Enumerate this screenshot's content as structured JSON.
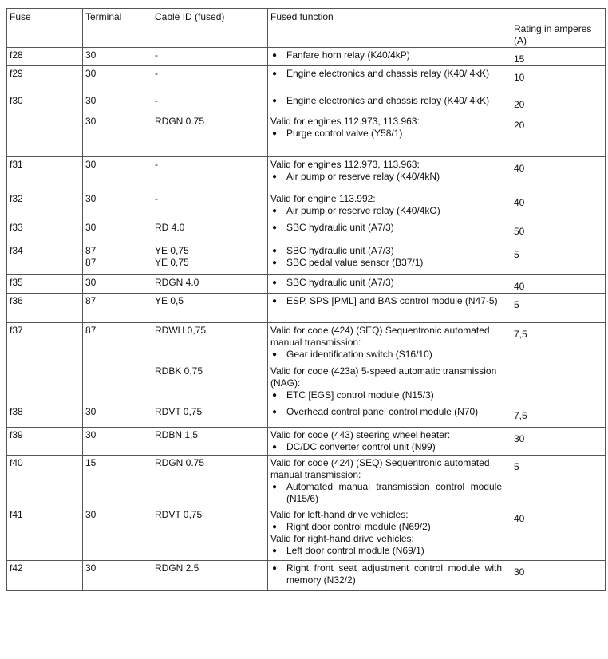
{
  "headers": [
    "Fuse",
    "Terminal",
    "Cable ID (fused)",
    "Fused function",
    "Rating in amperes (A)"
  ],
  "groups": [
    {
      "entries": [
        {
          "fuse": "f28",
          "terminal": "30",
          "cable": "-",
          "function": [
            {
              "type": "bullet",
              "text": "Fanfare horn relay  (K40/4kP)"
            }
          ],
          "rating": "15"
        }
      ]
    },
    {
      "entries": [
        {
          "fuse": "f29",
          "terminal": "30",
          "cable": "-",
          "function": [
            {
              "type": "bullet",
              "text": "Engine electronics and chassis relay (K40/ 4kK)"
            }
          ],
          "rating": "10"
        }
      ]
    },
    {
      "entries": [
        {
          "fuse": "f30",
          "terminal": "30",
          "cable": "-",
          "function": [
            {
              "type": "bullet",
              "text": "Engine electronics and chassis relay (K40/ 4kK)"
            }
          ],
          "rating": "20"
        },
        {
          "fuse": "",
          "terminal": "30",
          "cable": "RDGN 0.75",
          "function": [
            {
              "type": "text",
              "text": "Valid for engines 112.973, 113.963:"
            },
            {
              "type": "bullet",
              "text": "Purge control valve  (Y58/1)"
            }
          ],
          "rating": "20"
        }
      ]
    },
    {
      "entries": [
        {
          "fuse": "f31",
          "terminal": "30",
          "cable": "-",
          "function": [
            {
              "type": "text",
              "text": "Valid for engines 112.973, 113.963:"
            },
            {
              "type": "bullet",
              "text": "Air pump or reserve relay  (K40/4kN)"
            }
          ],
          "rating": "40"
        }
      ]
    },
    {
      "entries": [
        {
          "fuse": "f32",
          "terminal": "30",
          "cable": "-",
          "function": [
            {
              "type": "text",
              "text": "Valid for engine 113.992:"
            },
            {
              "type": "bullet",
              "text": "Air pump or reserve relay  (K40/4kO)"
            }
          ],
          "rating": "40"
        },
        {
          "fuse": "f33",
          "terminal": "30",
          "cable": "RD 4.0",
          "function": [
            {
              "type": "bullet",
              "text": "SBC hydraulic unit  (A7/3)"
            }
          ],
          "rating": "50"
        }
      ]
    },
    {
      "entries": [
        {
          "fuse": "f34",
          "terminal": "87\n87",
          "cable": "YE 0,75\nYE 0,75",
          "function": [
            {
              "type": "bullet",
              "text": "SBC hydraulic unit  (A7/3)"
            },
            {
              "type": "bullet",
              "text": "SBC pedal value sensor (B37/1)"
            }
          ],
          "rating": "5"
        }
      ]
    },
    {
      "entries": [
        {
          "fuse": "f35",
          "terminal": "30",
          "cable": "RDGN 4.0",
          "function": [
            {
              "type": "bullet",
              "text": "SBC hydraulic unit  (A7/3)"
            }
          ],
          "rating": "40"
        }
      ]
    },
    {
      "entries": [
        {
          "fuse": "f36",
          "terminal": "87",
          "cable": "YE 0,5",
          "function": [
            {
              "type": "bullet",
              "text": "ESP, SPS [PML] and BAS control module (N47-5)"
            }
          ],
          "rating": "5"
        }
      ]
    },
    {
      "entries": [
        {
          "fuse": "f37",
          "terminal": "87",
          "cable": "RDWH 0,75",
          "function": [
            {
              "type": "text",
              "text": "Valid for code (424) (SEQ) Sequentronic automated manual transmission:"
            },
            {
              "type": "bullet",
              "text": "Gear identification  switch  (S16/10)"
            }
          ],
          "rating": "7,5"
        },
        {
          "fuse": "",
          "terminal": "",
          "cable": "RDBK 0,75",
          "function": [
            {
              "type": "text",
              "text": "Valid for code (423a) 5-speed automatic transmission (NAG):"
            },
            {
              "type": "bullet",
              "text": "ETC [EGS] control  module  (N15/3)"
            }
          ],
          "rating": ""
        },
        {
          "fuse": "f38",
          "terminal": "30",
          "cable": "RDVT 0,75",
          "function": [
            {
              "type": "bullet",
              "text": "Overhead control panel control module (N70)"
            }
          ],
          "rating": "7,5"
        }
      ]
    },
    {
      "entries": [
        {
          "fuse": "f39",
          "terminal": "30",
          "cable": "RDBN 1,5",
          "function": [
            {
              "type": "text",
              "text": "Valid for code (443) steering wheel heater:"
            },
            {
              "type": "bullet",
              "text": "DC/DC converter control  unit  (N99)"
            }
          ],
          "rating": "30"
        }
      ]
    },
    {
      "entries": [
        {
          "fuse": "f40",
          "terminal": "15",
          "cable": "RDGN 0.75",
          "function": [
            {
              "type": "text",
              "text": "Valid for code (424) (SEQ) Sequentronic automated manual transmission:"
            },
            {
              "type": "bullet",
              "text": "Automated  manual transmission  control module (N15/6)"
            }
          ],
          "rating": "5"
        }
      ]
    },
    {
      "entries": [
        {
          "fuse": "f41",
          "terminal": "30",
          "cable": "RDVT 0,75",
          "function": [
            {
              "type": "text",
              "text": "Valid for left-hand drive vehicles:"
            },
            {
              "type": "bullet",
              "text": "Right  door control  module  (N69/2)"
            },
            {
              "type": "text",
              "text": "Valid for right-hand drive vehicles:"
            },
            {
              "type": "bullet",
              "text": "Left door control  module  (N69/1)"
            }
          ],
          "rating": "40"
        }
      ]
    },
    {
      "entries": [
        {
          "fuse": "f42",
          "terminal": "30",
          "cable": "RDGN 2.5",
          "function": [
            {
              "type": "bullet",
              "text": "Right front seat adjustment control module with memory (N32/2)"
            }
          ],
          "rating": "30"
        }
      ]
    }
  ]
}
